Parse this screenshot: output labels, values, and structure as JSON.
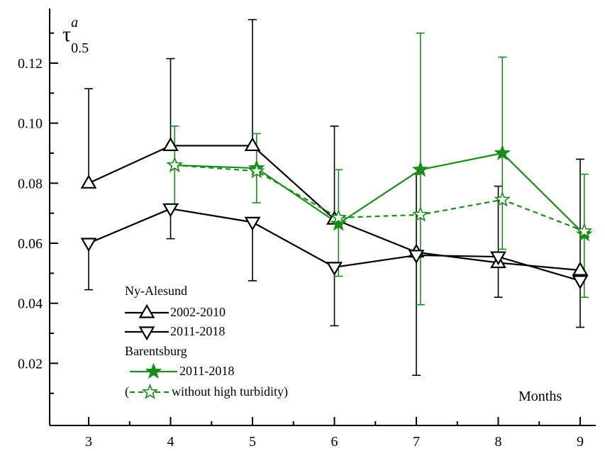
{
  "chart_data": {
    "type": "line",
    "xlabel": "Months",
    "ylabel_main": "τ",
    "ylabel_sup": "a",
    "ylabel_sub": "0.5",
    "xlim": [
      2.2,
      9.5
    ],
    "ylim": [
      0,
      0.138
    ],
    "xticks": [
      3,
      4,
      5,
      6,
      7,
      8,
      9
    ],
    "yticks": [
      0.02,
      0.04,
      0.06,
      0.08,
      0.1,
      0.12
    ],
    "ytick_labels": [
      "0.02",
      "0.04",
      "0.06",
      "0.08",
      "0.10",
      "0.12"
    ],
    "legend": {
      "group1": "Ny-Alesund",
      "group2": "Barentsburg",
      "prefix_open": "(",
      "suffix_close": ")"
    },
    "series": [
      {
        "group": "Ny-Alesund",
        "name": "2002-2010",
        "color": "#000000",
        "marker": "triangle-up",
        "dashed": false,
        "x": [
          3,
          4,
          5,
          6,
          7,
          8,
          9
        ],
        "y": [
          0.08,
          0.0925,
          0.0925,
          0.068,
          0.057,
          0.0535,
          0.051
        ],
        "err_up": [
          0.1115,
          0.1215,
          0.1345,
          0.099,
          0.083,
          0.079,
          null
        ],
        "err_dn": [
          null,
          null,
          null,
          null,
          null,
          null,
          null
        ]
      },
      {
        "group": "Ny-Alesund",
        "name": "2011-2018",
        "color": "#000000",
        "marker": "triangle-down",
        "dashed": false,
        "x": [
          3,
          4,
          5,
          6,
          7,
          8,
          9
        ],
        "y": [
          0.06,
          0.0715,
          0.067,
          0.052,
          0.056,
          0.0555,
          0.0475
        ],
        "err_up": [
          null,
          null,
          null,
          null,
          null,
          null,
          0.088
        ],
        "err_dn": [
          0.0445,
          0.0615,
          0.0475,
          0.0325,
          0.016,
          0.042,
          0.032
        ]
      },
      {
        "group": "Barentsburg",
        "name": "2011-2018",
        "color": "#1a8c1a",
        "marker": "star-filled",
        "dashed": false,
        "x": [
          4.05,
          5.05,
          6.05,
          7.05,
          8.05,
          9.05
        ],
        "y": [
          0.086,
          0.085,
          0.0665,
          0.0845,
          0.09,
          0.063
        ],
        "err_up": [
          0.099,
          0.0965,
          0.0845,
          0.13,
          0.122,
          0.083
        ],
        "err_dn": [
          0.073,
          0.0735,
          0.049,
          0.0395,
          0.058,
          0.042
        ]
      },
      {
        "group": "Barentsburg",
        "name": "without high turbidity",
        "color": "#1a8c1a",
        "marker": "star-open",
        "dashed": true,
        "x": [
          4.05,
          5.05,
          6.05,
          7.05,
          8.05,
          9.05
        ],
        "y": [
          0.086,
          0.084,
          0.0685,
          0.0695,
          0.0745,
          0.064
        ],
        "err_up": [
          null,
          null,
          null,
          null,
          null,
          null
        ],
        "err_dn": [
          null,
          null,
          null,
          null,
          null,
          null
        ]
      }
    ]
  }
}
